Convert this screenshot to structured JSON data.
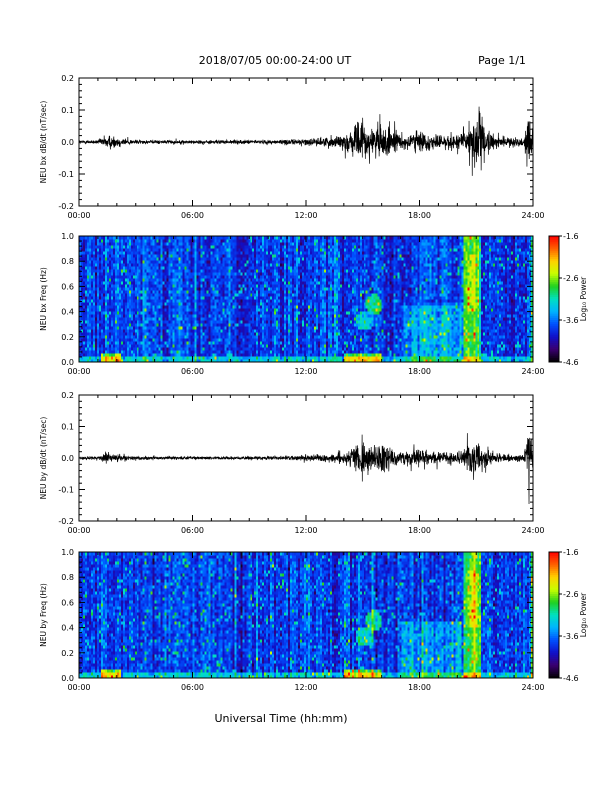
{
  "header": {
    "title": "2018/07/05  00:00-24:00 UT",
    "page": "Page 1/1"
  },
  "xlabel": "Universal Time (hh:mm)",
  "colors": {
    "trace": "#000000",
    "colormap": [
      "#000000",
      "#3a0070",
      "#1010c8",
      "#0050ff",
      "#00b4ff",
      "#00e0c0",
      "#20d020",
      "#c8ff00",
      "#ffd000",
      "#ff6000",
      "#ff0000"
    ]
  },
  "chart_data": [
    {
      "type": "line",
      "id": "bx-timeseries",
      "ylabel": "NEU bx dB/dt (nT/sec)",
      "xlim": [
        0,
        24
      ],
      "ylim": [
        -0.2,
        0.2
      ],
      "x_ticks": [
        "00:00",
        "06:00",
        "12:00",
        "18:00",
        "24:00"
      ],
      "y_ticks": [
        "-0.2",
        "-0.1",
        "0.0",
        "0.1",
        "0.2"
      ],
      "amplitude_envelope": {
        "hours": [
          0,
          1.0,
          1.5,
          2.0,
          2.8,
          4,
          8,
          10.5,
          12,
          13,
          14.3,
          14.6,
          15,
          15.5,
          16,
          16.5,
          17,
          17.8,
          19,
          20.2,
          20.6,
          21.0,
          21.4,
          22,
          23.5,
          23.8,
          24
        ],
        "amp": [
          0.008,
          0.012,
          0.04,
          0.03,
          0.012,
          0.01,
          0.01,
          0.012,
          0.018,
          0.025,
          0.05,
          0.09,
          0.11,
          0.07,
          0.11,
          0.07,
          0.04,
          0.06,
          0.035,
          0.05,
          0.12,
          0.18,
          0.1,
          0.03,
          0.02,
          0.18,
          0.05
        ]
      }
    },
    {
      "type": "heatmap",
      "id": "bx-spectrogram",
      "ylabel": "NEU bx Freq (Hz)",
      "colorbar_label": "Log₁₀ Power",
      "xlim": [
        0,
        24
      ],
      "ylim": [
        0.0,
        1.0
      ],
      "clim": [
        -4.6,
        -1.6
      ],
      "x_ticks": [
        "00:00",
        "06:00",
        "12:00",
        "18:00",
        "24:00"
      ],
      "y_ticks": [
        "0.0",
        "0.2",
        "0.4",
        "0.6",
        "0.8",
        "1.0"
      ],
      "colorbar_ticks": [
        "-1.6",
        "-2.6",
        "-3.6",
        "-4.6"
      ]
    },
    {
      "type": "line",
      "id": "by-timeseries",
      "ylabel": "NEU by dB/dt (nT/sec)",
      "xlim": [
        0,
        24
      ],
      "ylim": [
        -0.2,
        0.2
      ],
      "x_ticks": [
        "00:00",
        "06:00",
        "12:00",
        "18:00",
        "24:00"
      ],
      "y_ticks": [
        "-0.2",
        "-0.1",
        "0.0",
        "0.1",
        "0.2"
      ],
      "amplitude_envelope": {
        "hours": [
          0,
          1.0,
          1.5,
          2.0,
          2.8,
          4,
          8,
          10.5,
          12,
          13,
          14.3,
          14.6,
          15,
          15.5,
          16,
          16.5,
          17,
          17.8,
          19,
          20.2,
          20.6,
          21.0,
          21.4,
          22,
          23.5,
          23.8,
          24
        ],
        "amp": [
          0.006,
          0.01,
          0.03,
          0.02,
          0.01,
          0.008,
          0.008,
          0.01,
          0.015,
          0.02,
          0.04,
          0.07,
          0.1,
          0.06,
          0.09,
          0.05,
          0.03,
          0.05,
          0.03,
          0.04,
          0.08,
          0.1,
          0.07,
          0.025,
          0.015,
          0.16,
          0.04
        ]
      }
    },
    {
      "type": "heatmap",
      "id": "by-spectrogram",
      "ylabel": "NEU by Freq (Hz)",
      "colorbar_label": "Log₁₀ Power",
      "xlim": [
        0,
        24
      ],
      "ylim": [
        0.0,
        1.0
      ],
      "clim": [
        -4.6,
        -1.6
      ],
      "x_ticks": [
        "00:00",
        "06:00",
        "12:00",
        "18:00",
        "24:00"
      ],
      "y_ticks": [
        "0.0",
        "0.2",
        "0.4",
        "0.6",
        "0.8",
        "1.0"
      ],
      "colorbar_ticks": [
        "-1.6",
        "-2.6",
        "-3.6",
        "-4.6"
      ]
    }
  ]
}
